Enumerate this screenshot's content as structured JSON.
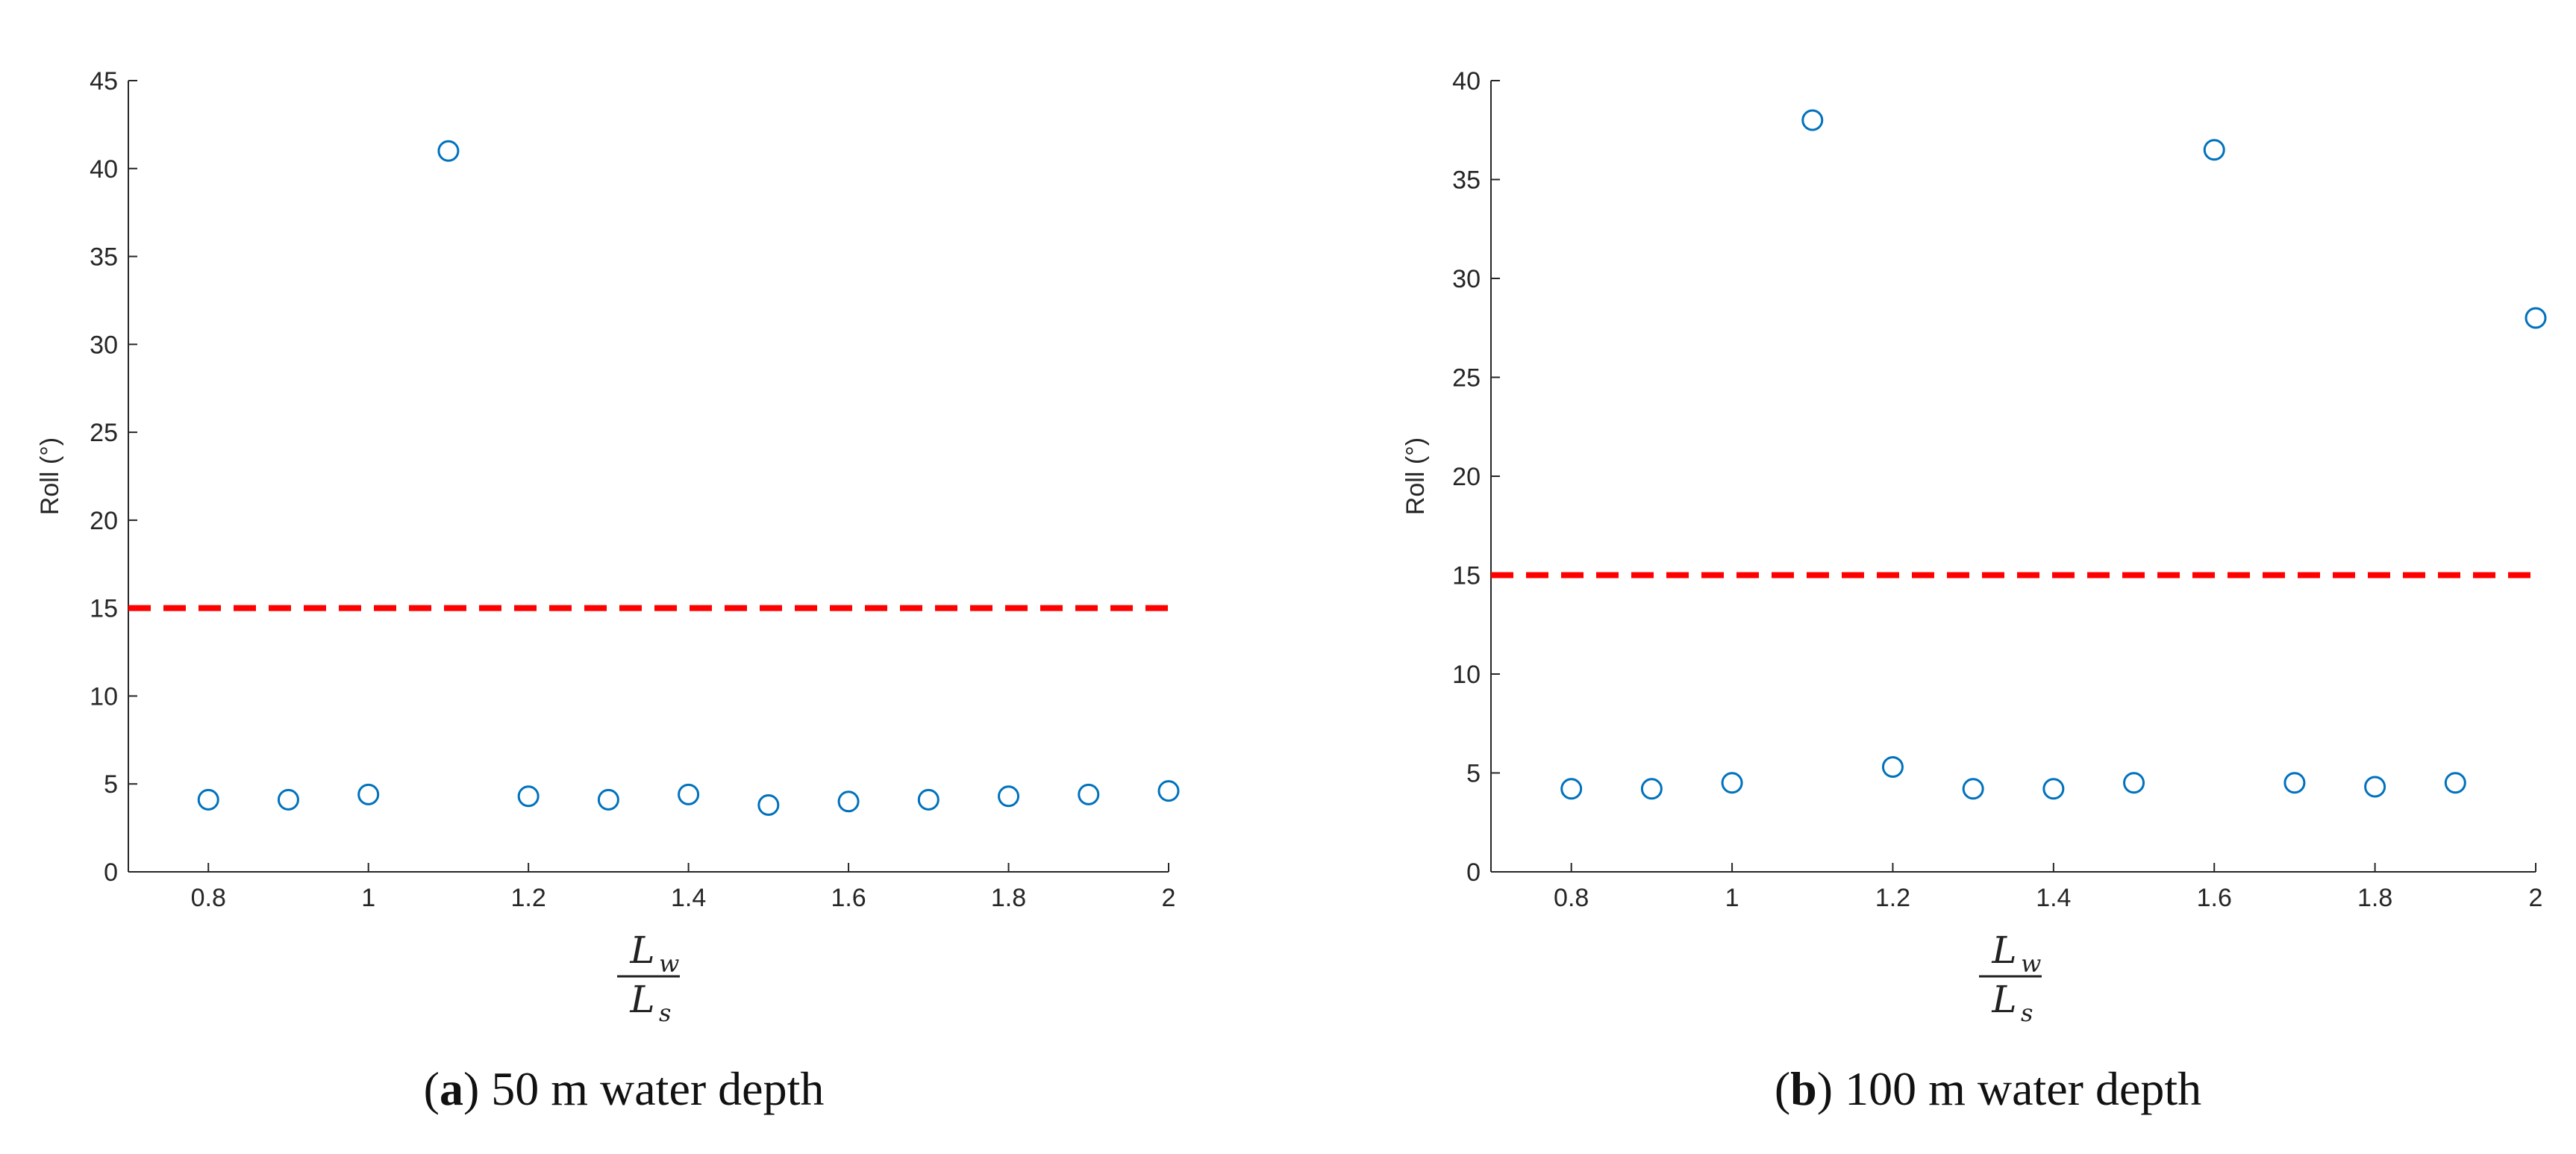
{
  "chart_data": [
    {
      "type": "scatter",
      "title": "",
      "xlabel": "",
      "xlabel_math": {
        "num_base": "L",
        "num_sub": "w",
        "den_base": "L",
        "den_sub": "s"
      },
      "ylabel": "Roll (°)",
      "xlim": [
        0.7,
        2.0
      ],
      "ylim": [
        0,
        45
      ],
      "xticks": [
        0.8,
        1,
        1.2,
        1.4,
        1.6,
        1.8,
        2
      ],
      "yticks": [
        0,
        5,
        10,
        15,
        20,
        25,
        30,
        35,
        40,
        45
      ],
      "grid": false,
      "marker_color": "#0072BD",
      "threshold": {
        "y": 15,
        "x_start": 0.7,
        "x_end": 2.0,
        "color": "#FF0000",
        "style": "dashed"
      },
      "points": [
        {
          "x": 0.8,
          "y": 4.1
        },
        {
          "x": 0.9,
          "y": 4.1
        },
        {
          "x": 1.0,
          "y": 4.4
        },
        {
          "x": 1.1,
          "y": 41.0
        },
        {
          "x": 1.2,
          "y": 4.3
        },
        {
          "x": 1.3,
          "y": 4.1
        },
        {
          "x": 1.4,
          "y": 4.4
        },
        {
          "x": 1.5,
          "y": 3.8
        },
        {
          "x": 1.6,
          "y": 4.0
        },
        {
          "x": 1.7,
          "y": 4.1
        },
        {
          "x": 1.8,
          "y": 4.3
        },
        {
          "x": 1.9,
          "y": 4.4
        },
        {
          "x": 2.0,
          "y": 4.6
        }
      ],
      "caption": {
        "letter": "a",
        "text": " 50 m water depth"
      }
    },
    {
      "type": "scatter",
      "title": "",
      "xlabel": "",
      "xlabel_math": {
        "num_base": "L",
        "num_sub": "w",
        "den_base": "L",
        "den_sub": "s"
      },
      "ylabel": "Roll (°)",
      "xlim": [
        0.7,
        2.0
      ],
      "ylim": [
        0,
        40
      ],
      "xticks": [
        0.8,
        1,
        1.2,
        1.4,
        1.6,
        1.8,
        2
      ],
      "yticks": [
        0,
        5,
        10,
        15,
        20,
        25,
        30,
        35,
        40
      ],
      "grid": false,
      "marker_color": "#0072BD",
      "threshold": {
        "y": 15,
        "x_start": 0.7,
        "x_end": 2.0,
        "color": "#FF0000",
        "style": "dashed"
      },
      "points": [
        {
          "x": 0.8,
          "y": 4.2
        },
        {
          "x": 0.9,
          "y": 4.2
        },
        {
          "x": 1.0,
          "y": 4.5
        },
        {
          "x": 1.1,
          "y": 38.0
        },
        {
          "x": 1.2,
          "y": 5.3
        },
        {
          "x": 1.3,
          "y": 4.2
        },
        {
          "x": 1.4,
          "y": 4.2
        },
        {
          "x": 1.5,
          "y": 4.5
        },
        {
          "x": 1.6,
          "y": 36.5
        },
        {
          "x": 1.7,
          "y": 4.5
        },
        {
          "x": 1.8,
          "y": 4.3
        },
        {
          "x": 1.9,
          "y": 4.5
        },
        {
          "x": 2.0,
          "y": 28.0
        }
      ],
      "caption": {
        "letter": "b",
        "text": " 100 m water depth"
      }
    }
  ]
}
